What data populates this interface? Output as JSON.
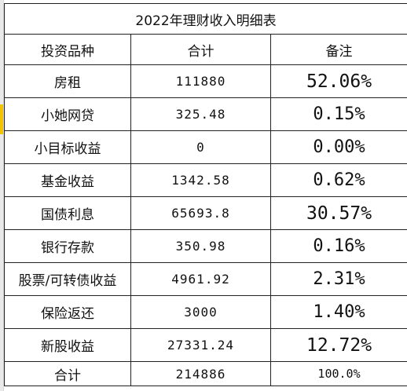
{
  "title": "2022年理财收入明细表",
  "headers": {
    "type": "投资品种",
    "total": "合计",
    "note": "备注"
  },
  "rows": [
    {
      "name": "房租",
      "total": "111880",
      "note": "52.06%"
    },
    {
      "name": "小她网贷",
      "total": "325.48",
      "note": "0.15%"
    },
    {
      "name": "小目标收益",
      "total": "0",
      "note": "0.00%"
    },
    {
      "name": "基金收益",
      "total": "1342.58",
      "note": "0.62%"
    },
    {
      "name": "国债利息",
      "total": "65693.8",
      "note": "30.57%"
    },
    {
      "name": "银行存款",
      "total": "350.98",
      "note": "0.16%"
    },
    {
      "name": "股票/可转债收益",
      "total": "4961.92",
      "note": "2.31%"
    },
    {
      "name": "保险返还",
      "total": "3000",
      "note": "1.40%"
    },
    {
      "name": "新股收益",
      "total": "27331.24",
      "note": "12.72%"
    }
  ],
  "footer": {
    "name": "合计",
    "total": "214886",
    "note": "100.0%"
  },
  "colors": {
    "grid": "#222222",
    "selection_marker": "#f2c300"
  }
}
